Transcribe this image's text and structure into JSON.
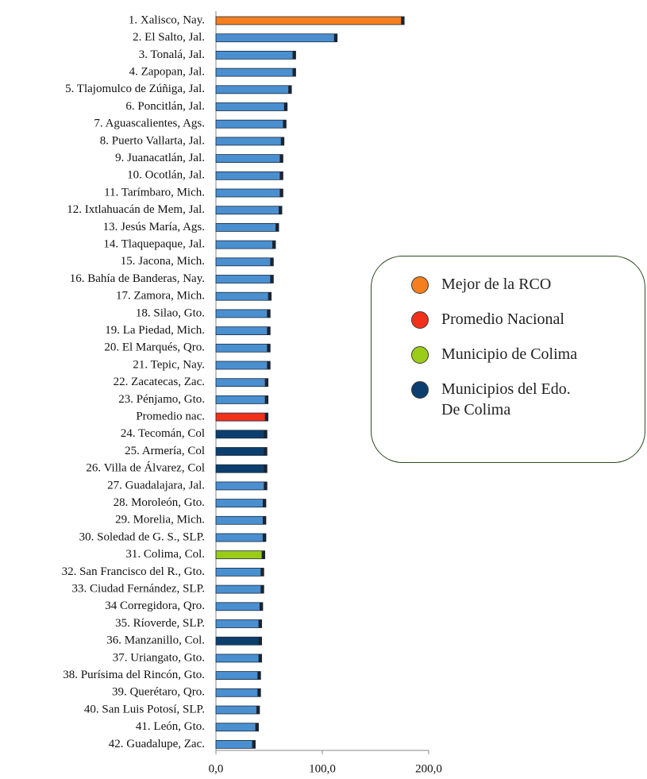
{
  "chart_data": {
    "type": "barh",
    "categories": [
      "1. Xalisco, Nay.",
      "2. El Salto, Jal.",
      "3. Tonalá, Jal.",
      "4. Zapopan, Jal.",
      "5. Tlajomulco de Zúñiga, Jal.",
      "6. Poncitlán, Jal.",
      "7. Aguascalientes, Ags.",
      "8. Puerto Vallarta, Jal.",
      "9. Juanacatlán, Jal.",
      "10. Ocotlán, Jal.",
      "11. Tarímbaro, Mich.",
      "12. Ixtlahuacán de Mem, Jal.",
      "13. Jesús María, Ags.",
      "14. Tlaquepaque, Jal.",
      "15. Jacona, Mich.",
      "16. Bahía de Banderas, Nay.",
      "17. Zamora, Mich.",
      "18. Silao, Gto.",
      "19. La Piedad, Mich.",
      "20. El Marqués, Qro.",
      "21. Tepic, Nay.",
      "22. Zacatecas, Zac.",
      "23. Pénjamo, Gto.",
      "Promedio nac.",
      "24. Tecomán, Col",
      "25. Armería, Col",
      "26. Villa de Álvarez, Col",
      "27. Guadalajara, Jal.",
      "28. Moroleón, Gto.",
      "29. Morelia, Mich.",
      "30. Soledad de G. S., SLP.",
      "31. Colima, Col.",
      "32. San Francisco del R., Gto.",
      "33. Ciudad Fernández, SLP.",
      "34 Corregidora, Qro.",
      "35. Ríoverde, SLP.",
      "36. Manzanillo, Col.",
      "37. Uriangato, Gto.",
      "38. Purísima del Rincón, Gto.",
      "39. Querétaro, Qro.",
      "40. San Luis Potosí, SLP.",
      "41. León, Gto.",
      "42. Guadalupe, Zac."
    ],
    "values": [
      177,
      114,
      75,
      75,
      71,
      67,
      66,
      64,
      63,
      63,
      63,
      62,
      59,
      56,
      54,
      54,
      52,
      51,
      51,
      51,
      51,
      49,
      49,
      49,
      48,
      48,
      48,
      48,
      47,
      47,
      47,
      46,
      45,
      45,
      44,
      43,
      43,
      43,
      42,
      42,
      41,
      40,
      37
    ],
    "colors": [
      "#f57f1e",
      "#4a8fd0",
      "#4a8fd0",
      "#4a8fd0",
      "#4a8fd0",
      "#4a8fd0",
      "#4a8fd0",
      "#4a8fd0",
      "#4a8fd0",
      "#4a8fd0",
      "#4a8fd0",
      "#4a8fd0",
      "#4a8fd0",
      "#4a8fd0",
      "#4a8fd0",
      "#4a8fd0",
      "#4a8fd0",
      "#4a8fd0",
      "#4a8fd0",
      "#4a8fd0",
      "#4a8fd0",
      "#4a8fd0",
      "#4a8fd0",
      "#f2311c",
      "#0c3f6e",
      "#0c3f6e",
      "#0c3f6e",
      "#4a8fd0",
      "#4a8fd0",
      "#4a8fd0",
      "#4a8fd0",
      "#9bcc1a",
      "#4a8fd0",
      "#4a8fd0",
      "#4a8fd0",
      "#4a8fd0",
      "#0c3f6e",
      "#4a8fd0",
      "#4a8fd0",
      "#4a8fd0",
      "#4a8fd0",
      "#4a8fd0",
      "#4a8fd0"
    ],
    "xlim": [
      0,
      200
    ],
    "xticks": [
      {
        "value": 0,
        "label": "0,0"
      },
      {
        "value": 100,
        "label": "100,0"
      },
      {
        "value": 200,
        "label": "200,0"
      }
    ],
    "legend": [
      {
        "name": "Mejor de la RCO",
        "color": "#f57f1e"
      },
      {
        "name": "Promedio Nacional",
        "color": "#f2311c"
      },
      {
        "name": "Municipio de Colima",
        "color": "#9bcc1a"
      },
      {
        "name": "Municipios del Edo. De Colima",
        "color": "#0c3f6e"
      }
    ]
  }
}
